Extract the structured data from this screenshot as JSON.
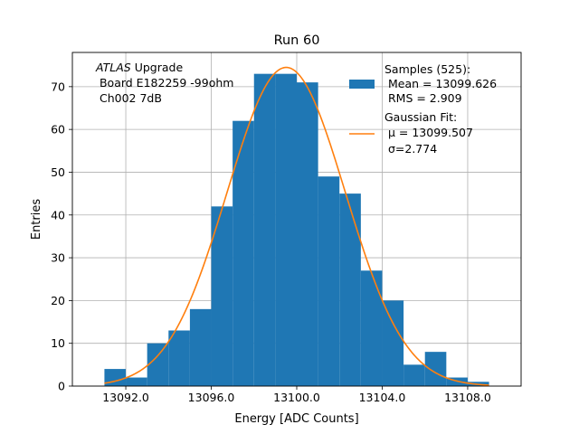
{
  "chart_data": {
    "type": "bar",
    "title": "Run 60",
    "xlabel": "Energy [ADC Counts]",
    "ylabel": "Entries",
    "xlim": [
      13089.5,
      13110.5
    ],
    "ylim": [
      0,
      78
    ],
    "grid": true,
    "x_ticks": [
      13092.0,
      13096.0,
      13100.0,
      13104.0,
      13108.0
    ],
    "x_tick_labels": [
      "13092.0",
      "13096.0",
      "13100.0",
      "13104.0",
      "13108.0"
    ],
    "y_ticks": [
      0,
      10,
      20,
      30,
      40,
      50,
      60,
      70
    ],
    "y_tick_labels": [
      "0",
      "10",
      "20",
      "30",
      "40",
      "50",
      "60",
      "70"
    ],
    "histogram": {
      "bin_edges": [
        13091,
        13092,
        13093,
        13094,
        13095,
        13096,
        13097,
        13098,
        13099,
        13100,
        13101,
        13102,
        13103,
        13104,
        13105,
        13106,
        13107,
        13108,
        13109
      ],
      "counts": [
        4,
        2,
        10,
        13,
        18,
        42,
        62,
        73,
        73,
        71,
        49,
        45,
        27,
        20,
        5,
        8,
        2,
        1
      ],
      "color": "#1f77b4"
    },
    "fit": {
      "mu": 13099.507,
      "sigma": 2.774,
      "amplitude": 74.5,
      "x_range": [
        13091,
        13109
      ],
      "color": "#ff7f0e"
    },
    "annotation": {
      "italic": "ATLAS",
      "rest": " Upgrade",
      "line2": " Board E182259 -99ohm",
      "line3": " Ch002 7dB"
    },
    "legend": {
      "placement": "upper right",
      "samples_title": "Samples (525):",
      "samples_mean": " Mean = 13099.626",
      "samples_rms": " RMS = 2.909",
      "fit_title": "Gaussian Fit:",
      "fit_mu": " μ = 13099.507",
      "fit_sigma": " σ=2.774"
    }
  }
}
